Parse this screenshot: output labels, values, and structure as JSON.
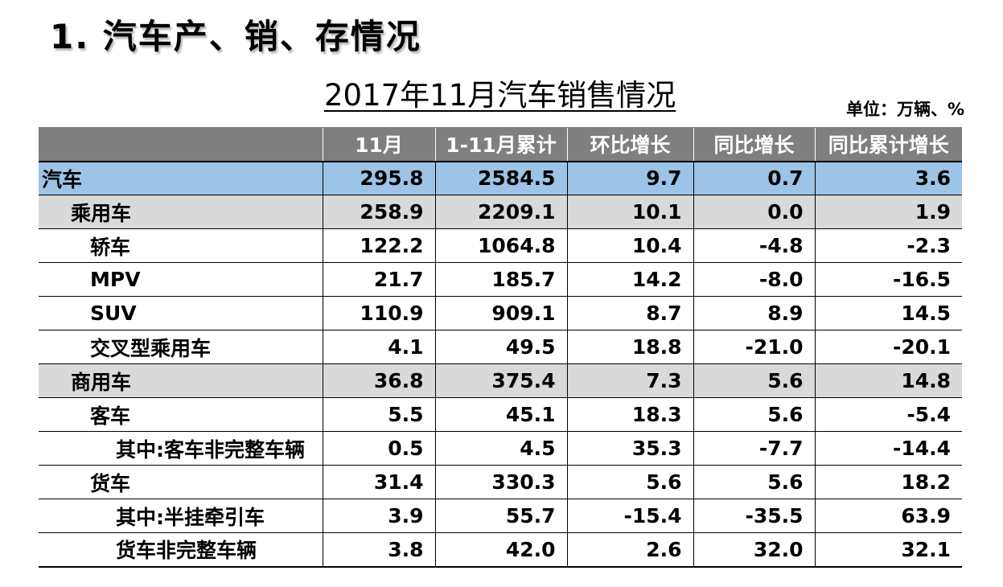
{
  "section_title": "1. 汽车产、销、存情况",
  "table_title": "2017年11月汽车销售情况",
  "unit": "单位：万辆、%",
  "columns": [
    "",
    "11月",
    "1-11月累计",
    "环比增长",
    "同比增长",
    "同比累计增长"
  ],
  "rows": [
    {
      "label": "汽车",
      "values": [
        "295.8",
        "2584.5",
        "9.7",
        "0.7",
        "3.6"
      ]
    },
    {
      "label": "乘用车",
      "values": [
        "258.9",
        "2209.1",
        "10.1",
        "0.0",
        "1.9"
      ]
    },
    {
      "label": "轿车",
      "values": [
        "122.2",
        "1064.8",
        "10.4",
        "-4.8",
        "-2.3"
      ]
    },
    {
      "label": "MPV",
      "values": [
        "21.7",
        "185.7",
        "14.2",
        "-8.0",
        "-16.5"
      ]
    },
    {
      "label": "SUV",
      "values": [
        "110.9",
        "909.1",
        "8.7",
        "8.9",
        "14.5"
      ]
    },
    {
      "label": "交叉型乘用车",
      "values": [
        "4.1",
        "49.5",
        "18.8",
        "-21.0",
        "-20.1"
      ]
    },
    {
      "label": "商用车",
      "values": [
        "36.8",
        "375.4",
        "7.3",
        "5.6",
        "14.8"
      ]
    },
    {
      "label": "客车",
      "values": [
        "5.5",
        "45.1",
        "18.3",
        "5.6",
        "-5.4"
      ]
    },
    {
      "label": "其中:客车非完整车辆",
      "values": [
        "0.5",
        "4.5",
        "35.3",
        "-7.7",
        "-14.4"
      ]
    },
    {
      "label": "货车",
      "values": [
        "31.4",
        "330.3",
        "5.6",
        "5.6",
        "18.2"
      ]
    },
    {
      "label": "其中:半挂牵引车",
      "values": [
        "3.9",
        "55.7",
        "-15.4",
        "-35.5",
        "63.9"
      ]
    },
    {
      "label": "货车非完整车辆",
      "values": [
        "3.8",
        "42.0",
        "2.6",
        "32.0",
        "32.1"
      ]
    }
  ],
  "colors": {
    "header_bg": "#7f7f7f",
    "total_row_bg": "#9dc3e6",
    "group_row_bg": "#d9d9d9"
  }
}
